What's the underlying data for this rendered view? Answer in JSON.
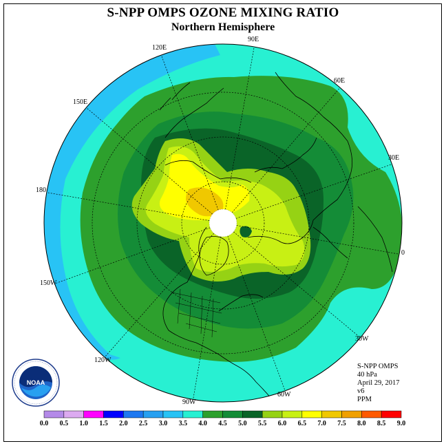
{
  "title": "S-NPP OMPS OZONE MIXING RATIO",
  "subtitle": "Northern Hemisphere",
  "longitude_labels": [
    "90E",
    "60E",
    "30E",
    "0",
    "30W",
    "60W",
    "90W",
    "120W",
    "150W",
    "180",
    "150E",
    "120E"
  ],
  "info": {
    "instrument": "S-NPP OMPS",
    "level": "40 hPa",
    "date": "April 29, 2017",
    "version": "v6",
    "units": "PPM"
  },
  "logo_text": "NOAA",
  "colorbar": {
    "labels": [
      "0.0",
      "0.5",
      "1.0",
      "1.5",
      "2.0",
      "2.5",
      "3.0",
      "3.5",
      "4.0",
      "4.5",
      "5.0",
      "5.5",
      "6.0",
      "6.5",
      "7.0",
      "7.5",
      "8.0",
      "8.5",
      "9.0"
    ],
    "colors": [
      "#b48ae8",
      "#dcaaf0",
      "#ff00ff",
      "#0000ff",
      "#1e78f0",
      "#28a0f0",
      "#28c3f5",
      "#28f0d2",
      "#2da02d",
      "#148c37",
      "#0a6428",
      "#96d214",
      "#c8f014",
      "#ffff00",
      "#f0c800",
      "#f0a000",
      "#ff5a00",
      "#ff0000",
      "#8c5a3c"
    ]
  },
  "colors": {
    "ring_3_0": "#28c3f5",
    "ring_3_5": "#28f0d2",
    "ring_4_0": "#2da02d",
    "ring_4_5": "#148c37",
    "ring_5_0": "#0a6428",
    "ring_5_5": "#96d214",
    "ring_6_0": "#c8f014",
    "ring_6_5": "#ffff00",
    "ring_7_0": "#f0c800"
  }
}
